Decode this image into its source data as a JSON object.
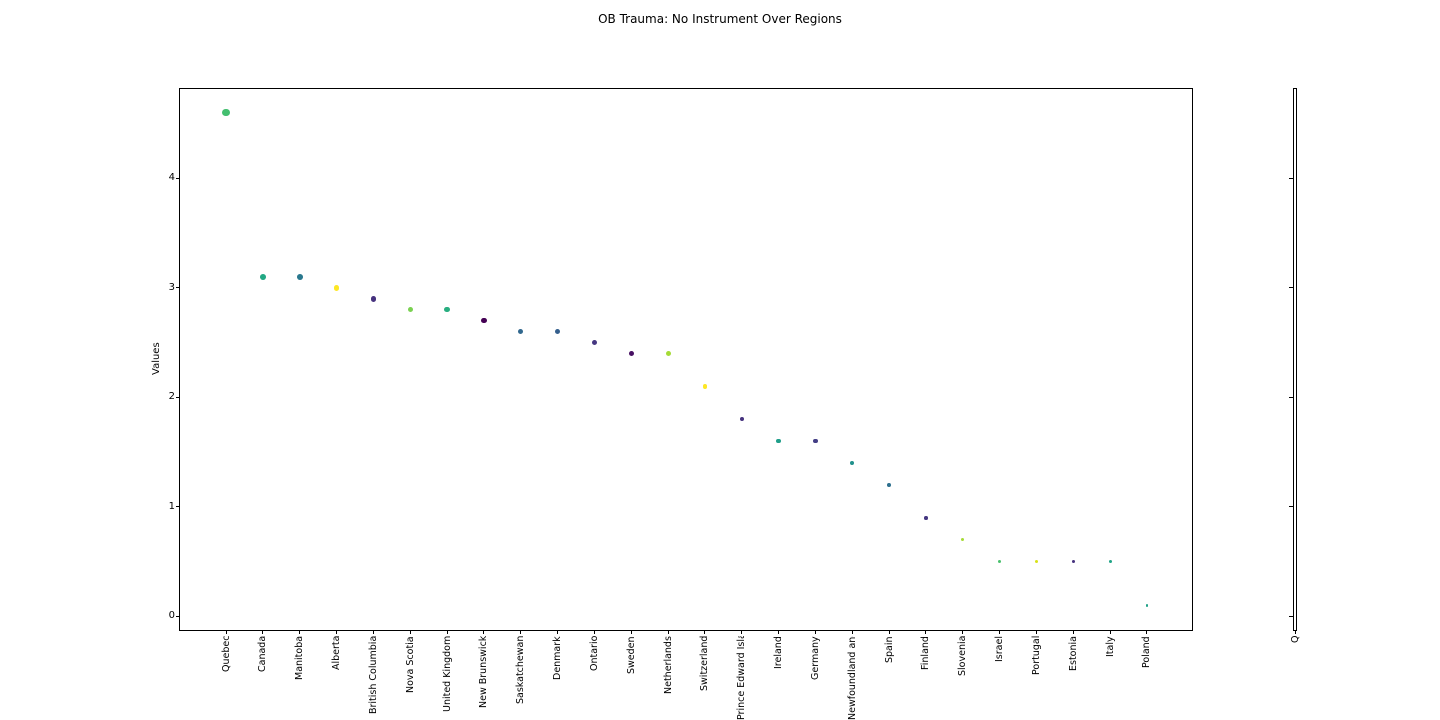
{
  "figure": {
    "background_color": "#ffffff",
    "axis_color": "#000000",
    "text_color": "#000000"
  },
  "chart_data": {
    "type": "scatter",
    "title": "OB Trauma: No Instrument Over Regions",
    "xlabel": "",
    "ylabel": "Values",
    "ylim": [
      -0.125,
      4.825
    ],
    "yticks": [
      0,
      1,
      2,
      3,
      4
    ],
    "grid": false,
    "legend": "none",
    "marker": "circle",
    "marker_size_rule": "dot diameter scales with value",
    "categories": [
      "Quebec",
      "Canada",
      "Manitoba",
      "Alberta",
      "British Columbia",
      "Nova Scotia",
      "United Kingdom",
      "New Brunswick",
      "Saskatchewan",
      "Denmark",
      "Ontario",
      "Sweden",
      "Netherlands",
      "Switzerland",
      "Prince Edward Island",
      "Ireland",
      "Germany",
      "Newfoundland and Labrador",
      "Spain",
      "Finland",
      "Slovenia",
      "Israel",
      "Portugal",
      "Estonia",
      "Italy",
      "Poland"
    ],
    "series": [
      {
        "name": "OB Trauma: No Instrument",
        "values": [
          4.6,
          3.1,
          3.1,
          3.0,
          2.9,
          2.8,
          2.8,
          2.7,
          2.6,
          2.6,
          2.5,
          2.4,
          2.4,
          2.1,
          1.8,
          1.6,
          1.6,
          1.4,
          1.2,
          0.9,
          0.7,
          0.5,
          0.5,
          0.5,
          0.5,
          0.1
        ],
        "point_colors": [
          "#44bf70",
          "#22a884",
          "#2a788e",
          "#fde725",
          "#46327e",
          "#7ad151",
          "#28ae80",
          "#440154",
          "#31688e",
          "#345f8d",
          "#453781",
          "#471063",
          "#a5db36",
          "#fde725",
          "#46327e",
          "#1f9e89",
          "#433e85",
          "#21918c",
          "#2d708e",
          "#453781",
          "#a5db36",
          "#4ac16d",
          "#d8e219",
          "#46327e",
          "#20a486",
          "#1fa187"
        ]
      }
    ]
  },
  "right_panel": {
    "type": "empty-twin-axes",
    "xtick_label": "Q",
    "ytick_values": [
      0,
      1,
      2,
      3,
      4
    ]
  }
}
